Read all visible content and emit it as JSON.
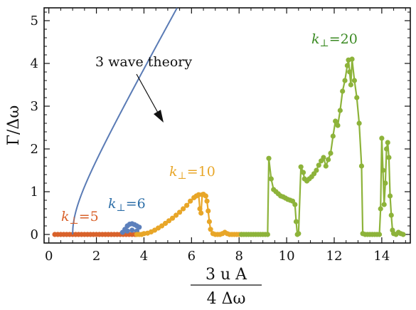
{
  "chart_data": {
    "type": "line",
    "ylabel": "Γ/Δω",
    "xlabel": {
      "numerator": "3 u A",
      "denominator": "4 Δω"
    },
    "xlim": [
      -0.2,
      15.2
    ],
    "ylim": [
      -0.2,
      5.3
    ],
    "x_ticks": [
      0,
      2,
      4,
      6,
      8,
      10,
      12,
      14
    ],
    "y_ticks": [
      0,
      1,
      2,
      3,
      4,
      5
    ],
    "grid": false,
    "legend": "none",
    "series": [
      {
        "name": "k⊥=5",
        "label_main": "k",
        "label_sub": "⊥",
        "label_rest": "=5",
        "color": "#d9622b",
        "style": "points",
        "x_start": 0.25,
        "x_step": 0.125,
        "count": 28,
        "y": 0
      },
      {
        "name": "k⊥=6",
        "label_main": "k",
        "label_sub": "⊥",
        "label_rest": "=6",
        "color": "#5c80bc",
        "style": "points",
        "points": [
          [
            3.1,
            0.05
          ],
          [
            3.2,
            0.12
          ],
          [
            3.3,
            0.2
          ],
          [
            3.4,
            0.24
          ],
          [
            3.5,
            0.25
          ],
          [
            3.6,
            0.23
          ],
          [
            3.7,
            0.2
          ],
          [
            3.8,
            0.17
          ],
          [
            3.3,
            0.08
          ],
          [
            3.5,
            0.1
          ],
          [
            3.7,
            0.08
          ]
        ]
      },
      {
        "name": "k⊥=10",
        "label_main": "k",
        "label_sub": "⊥",
        "label_rest": "=10",
        "color": "#e8a628",
        "style": "line-points",
        "points": [
          [
            3.7,
            0
          ],
          [
            3.8,
            0
          ],
          [
            3.9,
            0
          ],
          [
            4.0,
            0.02
          ],
          [
            4.15,
            0.03
          ],
          [
            4.3,
            0.06
          ],
          [
            4.45,
            0.1
          ],
          [
            4.6,
            0.15
          ],
          [
            4.75,
            0.2
          ],
          [
            4.9,
            0.26
          ],
          [
            5.05,
            0.32
          ],
          [
            5.2,
            0.38
          ],
          [
            5.35,
            0.45
          ],
          [
            5.5,
            0.52
          ],
          [
            5.65,
            0.6
          ],
          [
            5.8,
            0.68
          ],
          [
            5.95,
            0.78
          ],
          [
            6.1,
            0.86
          ],
          [
            6.2,
            0.9
          ],
          [
            6.3,
            0.93
          ],
          [
            6.35,
            0.6
          ],
          [
            6.4,
            0.5
          ],
          [
            6.45,
            0.93
          ],
          [
            6.5,
            0.94
          ],
          [
            6.6,
            0.9
          ],
          [
            6.65,
            0.78
          ],
          [
            6.7,
            0.55
          ],
          [
            6.75,
            0.3
          ],
          [
            6.8,
            0.12
          ],
          [
            6.9,
            0.02
          ],
          [
            7.0,
            0
          ],
          [
            7.1,
            0
          ],
          [
            7.2,
            0
          ],
          [
            7.3,
            0.02
          ],
          [
            7.4,
            0.05
          ],
          [
            7.5,
            0.02
          ],
          [
            7.6,
            0
          ],
          [
            7.7,
            0
          ],
          [
            7.8,
            0
          ],
          [
            7.9,
            0
          ],
          [
            8.0,
            0
          ],
          [
            8.1,
            0
          ]
        ]
      },
      {
        "name": "k⊥=20",
        "label_main": "k",
        "label_sub": "⊥",
        "label_rest": "=20",
        "color": "#8db33a",
        "style": "line-points",
        "points": [
          [
            8.1,
            0
          ],
          [
            8.2,
            0
          ],
          [
            8.3,
            0
          ],
          [
            8.4,
            0
          ],
          [
            8.5,
            0
          ],
          [
            8.6,
            0
          ],
          [
            8.7,
            0
          ],
          [
            8.8,
            0
          ],
          [
            8.9,
            0
          ],
          [
            9.0,
            0
          ],
          [
            9.1,
            0
          ],
          [
            9.2,
            0
          ],
          [
            9.25,
            1.78
          ],
          [
            9.35,
            1.3
          ],
          [
            9.45,
            1.05
          ],
          [
            9.55,
            1.0
          ],
          [
            9.65,
            0.95
          ],
          [
            9.75,
            0.9
          ],
          [
            9.85,
            0.88
          ],
          [
            9.95,
            0.85
          ],
          [
            10.05,
            0.82
          ],
          [
            10.15,
            0.8
          ],
          [
            10.25,
            0.78
          ],
          [
            10.35,
            0.7
          ],
          [
            10.4,
            0.3
          ],
          [
            10.45,
            0.0
          ],
          [
            10.5,
            0.02
          ],
          [
            10.6,
            1.58
          ],
          [
            10.7,
            1.45
          ],
          [
            10.75,
            1.3
          ],
          [
            10.85,
            1.25
          ],
          [
            10.95,
            1.3
          ],
          [
            11.05,
            1.35
          ],
          [
            11.15,
            1.42
          ],
          [
            11.25,
            1.5
          ],
          [
            11.35,
            1.62
          ],
          [
            11.45,
            1.72
          ],
          [
            11.55,
            1.8
          ],
          [
            11.65,
            1.6
          ],
          [
            11.75,
            1.75
          ],
          [
            11.85,
            1.9
          ],
          [
            11.95,
            2.3
          ],
          [
            12.05,
            2.65
          ],
          [
            12.15,
            2.55
          ],
          [
            12.25,
            2.9
          ],
          [
            12.35,
            3.35
          ],
          [
            12.45,
            3.6
          ],
          [
            12.55,
            3.95
          ],
          [
            12.6,
            4.08
          ],
          [
            12.65,
            3.8
          ],
          [
            12.7,
            3.5
          ],
          [
            12.75,
            4.1
          ],
          [
            12.85,
            3.6
          ],
          [
            12.95,
            3.2
          ],
          [
            13.05,
            2.6
          ],
          [
            13.15,
            1.6
          ],
          [
            13.2,
            0.02
          ],
          [
            13.3,
            0
          ],
          [
            13.4,
            0
          ],
          [
            13.5,
            0
          ],
          [
            13.6,
            0
          ],
          [
            13.7,
            0
          ],
          [
            13.8,
            0
          ],
          [
            13.9,
            0
          ],
          [
            13.95,
            0.6
          ],
          [
            14.0,
            2.25
          ],
          [
            14.05,
            1.5
          ],
          [
            14.1,
            0.7
          ],
          [
            14.15,
            1.2
          ],
          [
            14.2,
            2.0
          ],
          [
            14.25,
            2.15
          ],
          [
            14.3,
            1.8
          ],
          [
            14.35,
            0.9
          ],
          [
            14.4,
            0.45
          ],
          [
            14.45,
            0.1
          ],
          [
            14.5,
            0.02
          ],
          [
            14.6,
            0
          ],
          [
            14.7,
            0.05
          ],
          [
            14.8,
            0.02
          ],
          [
            14.9,
            0
          ]
        ]
      },
      {
        "name": "3 wave theory",
        "color": "#5a7bb5",
        "style": "curve",
        "formula": "y = sqrt(x^2 - 1), x >= 1"
      }
    ],
    "annotations": [
      {
        "text": "3 wave theory",
        "has_arrow": true
      }
    ]
  }
}
